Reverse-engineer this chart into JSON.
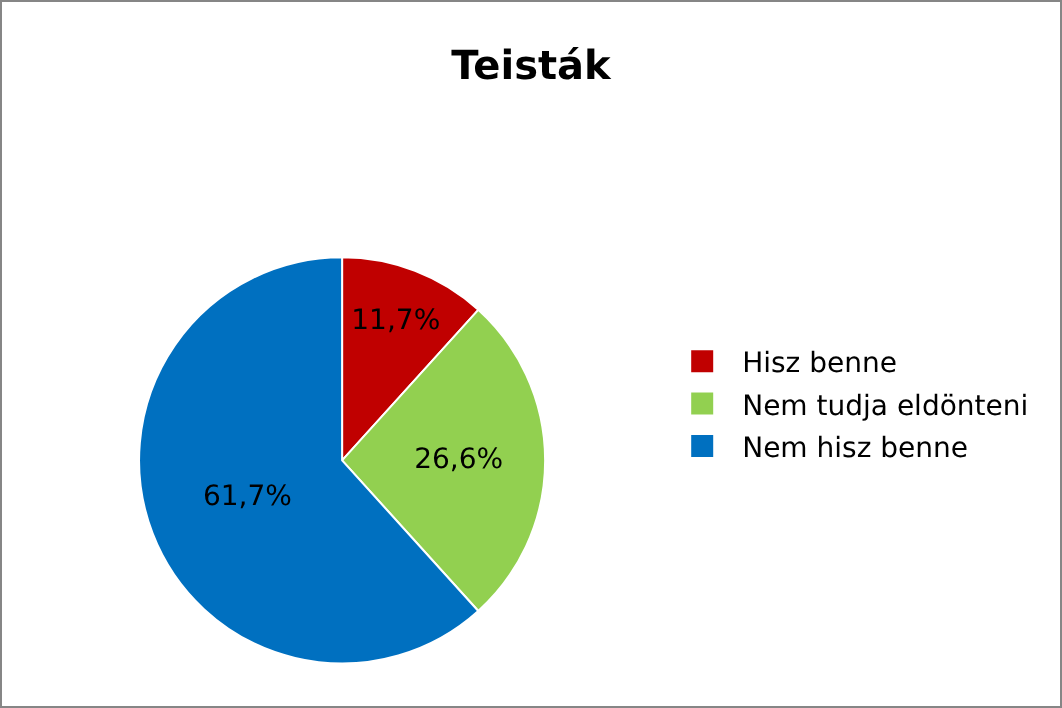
{
  "chart_data": {
    "type": "pie",
    "title": "Teisták",
    "categories": [
      "Hisz benne",
      "Nem tudja eldönteni",
      "Nem hisz benne"
    ],
    "values": [
      11.7,
      26.6,
      61.7
    ],
    "colors": [
      "#c00000",
      "#92d050",
      "#0070c0"
    ],
    "value_labels": [
      "11,7%",
      "26,6%",
      "61,7%"
    ],
    "legend": "right"
  }
}
